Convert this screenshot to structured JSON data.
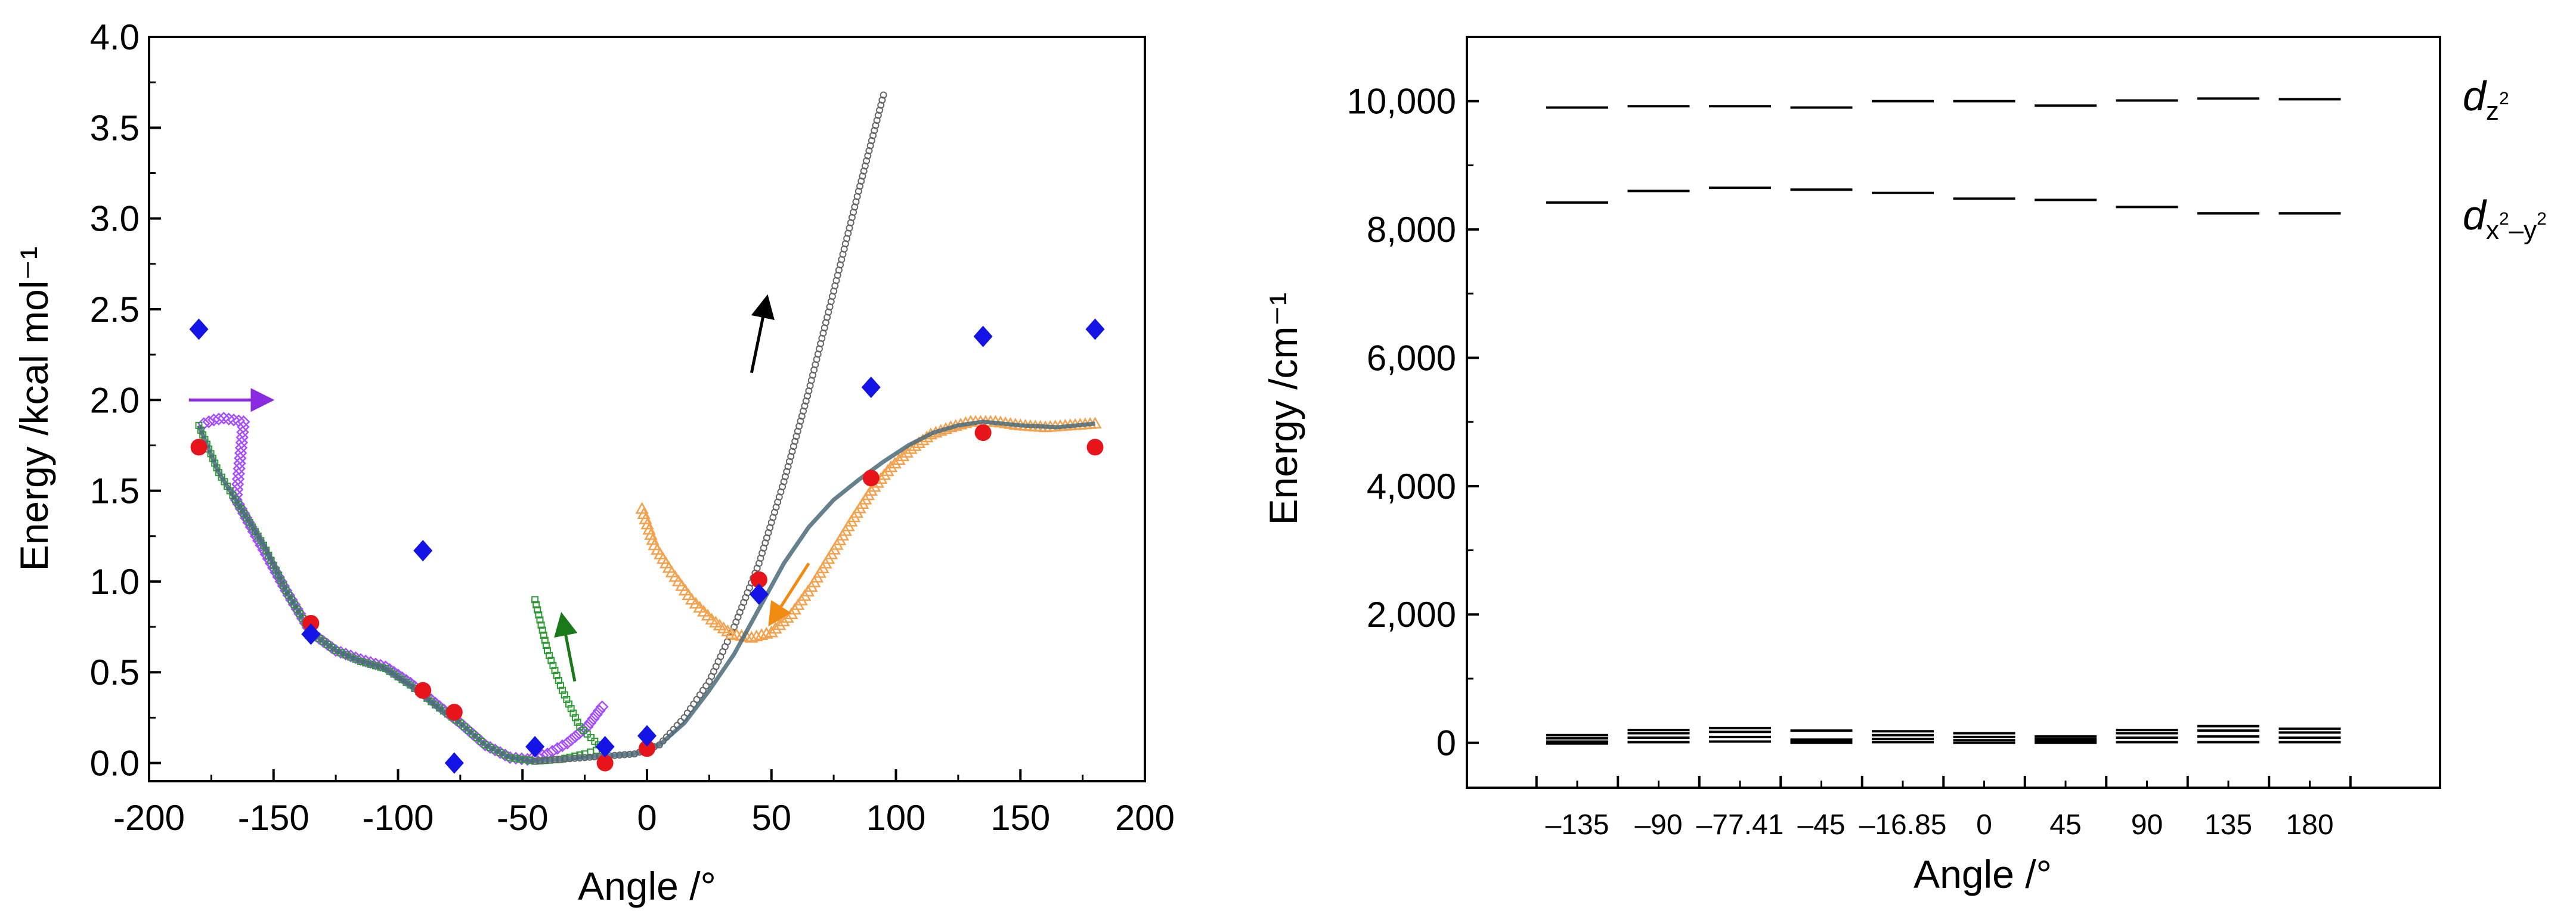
{
  "colors": {
    "red": "#e8141b",
    "blue": "#1414e6",
    "purple": "#a64dff",
    "green": "#2e9a36",
    "orange": "#f5a04a",
    "gray": "#666666",
    "fit": "#4a6b7a",
    "arrow_purple": "#8a2be2",
    "arrow_green": "#1a7a1a",
    "arrow_black": "#000000",
    "arrow_orange": "#f08a10"
  },
  "chart_data": [
    {
      "type": "scatter",
      "title": "",
      "xlabel": "Angle /°",
      "ylabel": "Energy /kcal mol⁻¹",
      "xlim": [
        -200,
        200
      ],
      "ylim": [
        -0.1,
        4.0
      ],
      "xticks": [
        -200,
        -150,
        -100,
        -50,
        0,
        50,
        100,
        150,
        200
      ],
      "xtick_labels": [
        "-200",
        "-150",
        "-100",
        "-50",
        "0",
        "50",
        "100",
        "150",
        "200"
      ],
      "yticks": [
        0.0,
        0.5,
        1.0,
        1.5,
        2.0,
        2.5,
        3.0,
        3.5,
        4.0
      ],
      "ytick_labels": [
        "0.0",
        "0.5",
        "1.0",
        "1.5",
        "2.0",
        "2.5",
        "3.0",
        "3.5",
        "4.0"
      ],
      "series": [
        {
          "name": "circles",
          "marker": "circle",
          "color": "red",
          "points": [
            [
              -180,
              1.74
            ],
            [
              -135,
              0.77
            ],
            [
              -90,
              0.4
            ],
            [
              -77.41,
              0.28
            ],
            [
              -16.85,
              0.0
            ],
            [
              0,
              0.08
            ],
            [
              45,
              1.01
            ],
            [
              90,
              1.57
            ],
            [
              135,
              1.82
            ],
            [
              180,
              1.74
            ]
          ]
        },
        {
          "name": "diamonds",
          "marker": "diamond",
          "color": "blue",
          "points": [
            [
              -180,
              2.39
            ],
            [
              -135,
              0.71
            ],
            [
              -90,
              1.17
            ],
            [
              -77.41,
              0.0
            ],
            [
              -45,
              0.09
            ],
            [
              -16.85,
              0.09
            ],
            [
              0,
              0.15
            ],
            [
              45,
              0.93
            ],
            [
              90,
              2.07
            ],
            [
              135,
              2.35
            ],
            [
              180,
              2.39
            ]
          ]
        },
        {
          "name": "scan-purple",
          "marker": "open-diamond",
          "color": "purple",
          "points": [
            [
              -178,
              1.87
            ],
            [
              -174,
              1.89
            ],
            [
              -170,
              1.9
            ],
            [
              -166,
              1.89
            ],
            [
              -162,
              1.88
            ],
            [
              -165,
              1.45
            ],
            [
              -155,
              1.2
            ],
            [
              -145,
              0.95
            ],
            [
              -135,
              0.72
            ],
            [
              -125,
              0.62
            ],
            [
              -115,
              0.57
            ],
            [
              -105,
              0.53
            ],
            [
              -95,
              0.44
            ],
            [
              -85,
              0.33
            ],
            [
              -75,
              0.22
            ],
            [
              -65,
              0.1
            ],
            [
              -55,
              0.03
            ],
            [
              -48,
              0.02
            ],
            [
              -40,
              0.05
            ],
            [
              -32,
              0.11
            ],
            [
              -24,
              0.2
            ],
            [
              -18,
              0.31
            ]
          ]
        },
        {
          "name": "scan-green",
          "marker": "open-square",
          "color": "green",
          "points": [
            [
              -180,
              1.86
            ],
            [
              -172,
              1.6
            ],
            [
              -163,
              1.4
            ],
            [
              -154,
              1.2
            ],
            [
              -145,
              0.95
            ],
            [
              -135,
              0.72
            ],
            [
              -125,
              0.62
            ],
            [
              -115,
              0.56
            ],
            [
              -105,
              0.52
            ],
            [
              -95,
              0.43
            ],
            [
              -85,
              0.32
            ],
            [
              -75,
              0.22
            ],
            [
              -65,
              0.1
            ],
            [
              -55,
              0.03
            ],
            [
              -45,
              0.01
            ],
            [
              -35,
              0.02
            ],
            [
              -25,
              0.05
            ],
            [
              -18,
              0.08
            ],
            [
              -27,
              0.2
            ],
            [
              -34,
              0.4
            ],
            [
              -40,
              0.62
            ],
            [
              -45,
              0.9
            ]
          ]
        },
        {
          "name": "scan-gray",
          "marker": "open-circle",
          "color": "gray",
          "points": [
            [
              -45,
              0.01
            ],
            [
              -35,
              0.02
            ],
            [
              -25,
              0.03
            ],
            [
              -15,
              0.04
            ],
            [
              -5,
              0.05
            ],
            [
              5,
              0.1
            ],
            [
              15,
              0.25
            ],
            [
              25,
              0.45
            ],
            [
              35,
              0.75
            ],
            [
              45,
              1.1
            ],
            [
              55,
              1.55
            ],
            [
              65,
              2.05
            ],
            [
              75,
              2.6
            ],
            [
              85,
              3.15
            ],
            [
              95,
              3.68
            ]
          ]
        },
        {
          "name": "scan-orange",
          "marker": "open-triangle",
          "color": "orange",
          "points": [
            [
              -2,
              1.4
            ],
            [
              3,
              1.2
            ],
            [
              10,
              1.05
            ],
            [
              18,
              0.9
            ],
            [
              26,
              0.79
            ],
            [
              34,
              0.71
            ],
            [
              42,
              0.69
            ],
            [
              50,
              0.72
            ],
            [
              58,
              0.82
            ],
            [
              66,
              0.97
            ],
            [
              74,
              1.15
            ],
            [
              82,
              1.33
            ],
            [
              90,
              1.5
            ],
            [
              98,
              1.63
            ],
            [
              106,
              1.73
            ],
            [
              114,
              1.81
            ],
            [
              122,
              1.85
            ],
            [
              130,
              1.88
            ],
            [
              140,
              1.88
            ],
            [
              150,
              1.86
            ],
            [
              160,
              1.85
            ],
            [
              170,
              1.86
            ],
            [
              180,
              1.87
            ]
          ]
        },
        {
          "name": "fit",
          "marker": "line",
          "color": "fit",
          "points": [
            [
              -180,
              1.86
            ],
            [
              -172,
              1.6
            ],
            [
              -163,
              1.4
            ],
            [
              -154,
              1.2
            ],
            [
              -145,
              0.95
            ],
            [
              -135,
              0.72
            ],
            [
              -125,
              0.62
            ],
            [
              -115,
              0.56
            ],
            [
              -105,
              0.52
            ],
            [
              -95,
              0.43
            ],
            [
              -85,
              0.32
            ],
            [
              -75,
              0.22
            ],
            [
              -65,
              0.1
            ],
            [
              -55,
              0.03
            ],
            [
              -45,
              0.01
            ],
            [
              -35,
              0.02
            ],
            [
              -25,
              0.03
            ],
            [
              -15,
              0.04
            ],
            [
              -5,
              0.05
            ],
            [
              5,
              0.1
            ],
            [
              15,
              0.22
            ],
            [
              25,
              0.4
            ],
            [
              35,
              0.6
            ],
            [
              45,
              0.85
            ],
            [
              55,
              1.1
            ],
            [
              65,
              1.3
            ],
            [
              75,
              1.45
            ],
            [
              85,
              1.56
            ],
            [
              95,
              1.66
            ],
            [
              105,
              1.75
            ],
            [
              115,
              1.82
            ],
            [
              125,
              1.86
            ],
            [
              135,
              1.88
            ],
            [
              150,
              1.86
            ],
            [
              165,
              1.85
            ],
            [
              180,
              1.87
            ]
          ]
        }
      ],
      "arrows": [
        {
          "name": "purple-arrow",
          "color": "arrow_purple",
          "from": [
            -184,
            2.0
          ],
          "to": [
            -152,
            2.0
          ]
        },
        {
          "name": "green-arrow",
          "color": "arrow_green",
          "from": [
            -29,
            0.45
          ],
          "to": [
            -34,
            0.8
          ]
        },
        {
          "name": "black-arrow",
          "color": "arrow_black",
          "from": [
            42,
            2.15
          ],
          "to": [
            48,
            2.55
          ]
        },
        {
          "name": "orange-arrow",
          "color": "arrow_orange",
          "from": [
            65,
            1.1
          ],
          "to": [
            50,
            0.78
          ]
        }
      ]
    },
    {
      "type": "levels",
      "title": "",
      "xlabel": "Angle /°",
      "ylabel": "Energy /cm⁻¹",
      "ylim": [
        -700,
        11000
      ],
      "yticks": [
        0,
        2000,
        4000,
        6000,
        8000,
        10000
      ],
      "ytick_labels": [
        "0",
        "2,000",
        "4,000",
        "6,000",
        "8,000",
        "10,000"
      ],
      "categories": [
        "–135",
        "–90",
        "–77.41",
        "–45",
        "–16.85",
        "0",
        "45",
        "90",
        "135",
        "180"
      ],
      "levels": [
        [
          9900,
          8420,
          120,
          70,
          20,
          -10
        ],
        [
          9920,
          8600,
          200,
          150,
          80,
          10
        ],
        [
          9920,
          8650,
          230,
          170,
          90,
          20
        ],
        [
          9900,
          8620,
          190,
          50,
          20,
          0
        ],
        [
          10000,
          8570,
          180,
          120,
          60,
          10
        ],
        [
          10000,
          8480,
          150,
          90,
          40,
          0
        ],
        [
          9930,
          8460,
          100,
          60,
          30,
          0
        ],
        [
          10010,
          8350,
          200,
          150,
          80,
          10
        ],
        [
          10040,
          8250,
          260,
          190,
          100,
          10
        ],
        [
          10030,
          8250,
          220,
          160,
          80,
          10
        ]
      ],
      "orbital_labels": {
        "upper_main": "d",
        "upper_sub": "z",
        "upper_sup": "2",
        "lower_main": "d",
        "lower_sub_a": "x",
        "lower_sup_a": "2",
        "lower_sub_dash": "–",
        "lower_sub_b": "y",
        "lower_sup_b": "2"
      }
    }
  ]
}
